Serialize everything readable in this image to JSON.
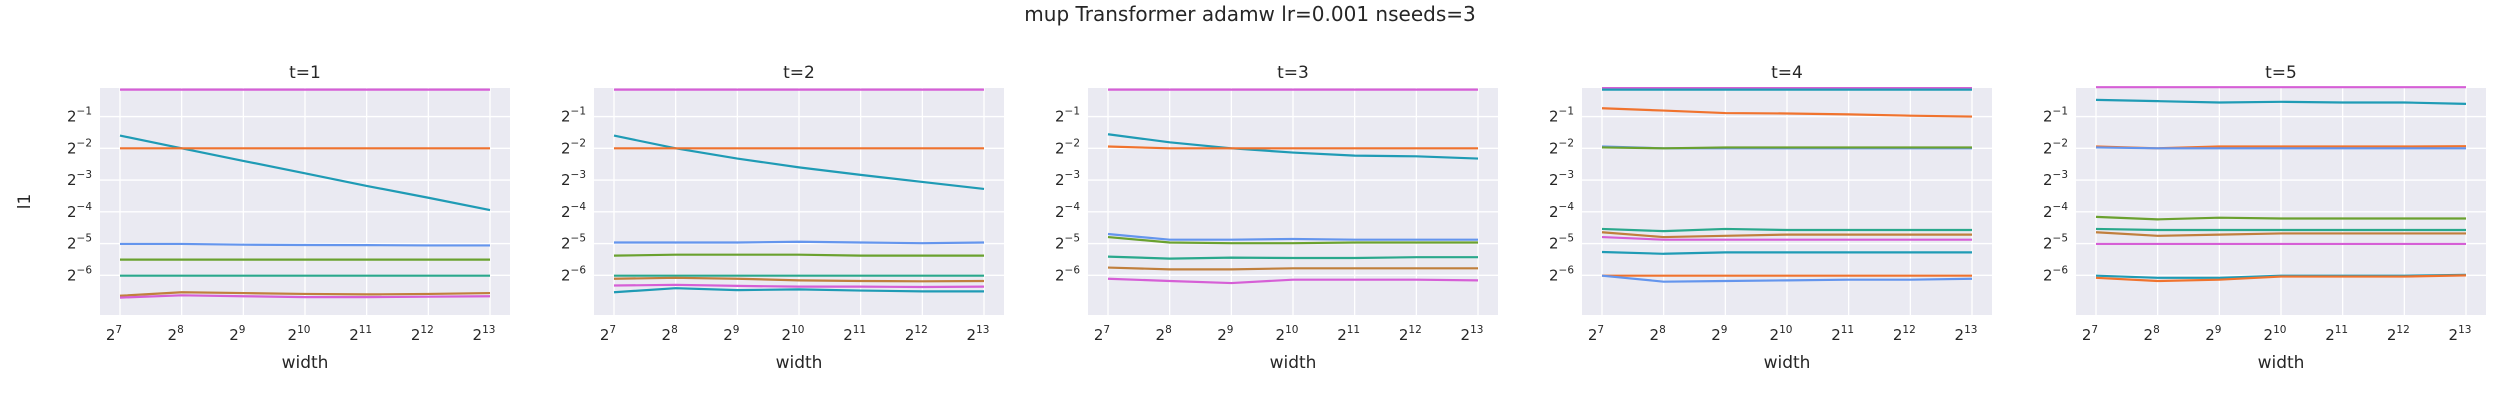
{
  "title": "mup Transformer adamw lr=0.001 nseeds=3",
  "colors": [
    "#d65fd6",
    "#1f9bb5",
    "#f0732e",
    "#6495ed",
    "#6aa12f",
    "#2aa88c",
    "#c07f3d"
  ],
  "chart_data": [
    {
      "type": "line",
      "title": "t=1",
      "xlabel": "width",
      "ylabel": "l1",
      "x_scale": "log2",
      "y_scale": "log2",
      "x": [
        128,
        256,
        512,
        1024,
        2048,
        4096,
        8192
      ],
      "x_ticks": [
        "2^7",
        "2^8",
        "2^9",
        "2^10",
        "2^11",
        "2^12",
        "2^13"
      ],
      "y_ticks": [
        "2^-1",
        "2^-2",
        "2^-3",
        "2^-4",
        "2^-5",
        "2^-6"
      ],
      "grid": true,
      "series": [
        {
          "values": [
            0.9,
            0.9,
            0.9,
            0.9,
            0.9,
            0.9,
            0.9
          ]
        },
        {
          "values": [
            0.33,
            0.25,
            0.19,
            0.145,
            0.11,
            0.085,
            0.065
          ]
        },
        {
          "values": [
            0.25,
            0.25,
            0.25,
            0.25,
            0.25,
            0.25,
            0.25
          ]
        },
        {
          "values": [
            0.031,
            0.031,
            0.0305,
            0.0303,
            0.0302,
            0.03,
            0.03
          ]
        },
        {
          "values": [
            0.022,
            0.022,
            0.022,
            0.022,
            0.022,
            0.022,
            0.022
          ]
        },
        {
          "values": [
            0.0155,
            0.0155,
            0.0155,
            0.0155,
            0.0155,
            0.0155,
            0.0155
          ]
        },
        {
          "values": [
            0.01,
            0.0108,
            0.0106,
            0.0104,
            0.0103,
            0.0104,
            0.0106
          ]
        },
        {
          "values": [
            0.0096,
            0.0101,
            0.0099,
            0.0097,
            0.0097,
            0.0098,
            0.0099
          ]
        }
      ]
    },
    {
      "type": "line",
      "title": "t=2",
      "xlabel": "width",
      "ylabel": "",
      "x_scale": "log2",
      "y_scale": "log2",
      "x": [
        128,
        256,
        512,
        1024,
        2048,
        4096,
        8192
      ],
      "x_ticks": [
        "2^7",
        "2^8",
        "2^9",
        "2^10",
        "2^11",
        "2^12",
        "2^13"
      ],
      "y_ticks": [
        "2^-1",
        "2^-2",
        "2^-3",
        "2^-4",
        "2^-5",
        "2^-6"
      ],
      "grid": true,
      "series": [
        {
          "values": [
            0.9,
            0.9,
            0.9,
            0.9,
            0.9,
            0.9,
            0.9
          ]
        },
        {
          "values": [
            0.33,
            0.25,
            0.2,
            0.165,
            0.14,
            0.12,
            0.103
          ]
        },
        {
          "values": [
            0.25,
            0.25,
            0.25,
            0.25,
            0.25,
            0.25,
            0.25
          ]
        },
        {
          "values": [
            0.032,
            0.032,
            0.032,
            0.0325,
            0.032,
            0.0315,
            0.032
          ]
        },
        {
          "values": [
            0.024,
            0.0245,
            0.0245,
            0.0245,
            0.024,
            0.024,
            0.024
          ]
        },
        {
          "values": [
            0.0155,
            0.0155,
            0.0155,
            0.0155,
            0.0155,
            0.0155,
            0.0155
          ]
        },
        {
          "values": [
            0.0145,
            0.0148,
            0.0145,
            0.014,
            0.0138,
            0.0137,
            0.0138
          ]
        },
        {
          "values": [
            0.0125,
            0.0127,
            0.0124,
            0.0122,
            0.0122,
            0.0121,
            0.0122
          ]
        },
        {
          "values": [
            0.0108,
            0.0118,
            0.0113,
            0.0115,
            0.0112,
            0.011,
            0.011
          ]
        }
      ]
    },
    {
      "type": "line",
      "title": "t=3",
      "xlabel": "width",
      "ylabel": "",
      "x_scale": "log2",
      "y_scale": "log2",
      "x": [
        128,
        256,
        512,
        1024,
        2048,
        4096,
        8192
      ],
      "x_ticks": [
        "2^7",
        "2^8",
        "2^9",
        "2^10",
        "2^11",
        "2^12",
        "2^13"
      ],
      "y_ticks": [
        "2^-1",
        "2^-2",
        "2^-3",
        "2^-4",
        "2^-5",
        "2^-6"
      ],
      "grid": true,
      "series": [
        {
          "values": [
            0.9,
            0.9,
            0.9,
            0.9,
            0.9,
            0.9,
            0.9
          ]
        },
        {
          "values": [
            0.34,
            0.285,
            0.25,
            0.228,
            0.213,
            0.21,
            0.2
          ]
        },
        {
          "values": [
            0.26,
            0.25,
            0.25,
            0.25,
            0.25,
            0.25,
            0.25
          ]
        },
        {
          "values": [
            0.0385,
            0.034,
            0.034,
            0.0345,
            0.034,
            0.034,
            0.034
          ]
        },
        {
          "values": [
            0.036,
            0.032,
            0.0315,
            0.0315,
            0.032,
            0.032,
            0.032
          ]
        },
        {
          "values": [
            0.0235,
            0.0225,
            0.023,
            0.0228,
            0.0228,
            0.0232,
            0.0232
          ]
        },
        {
          "values": [
            0.0185,
            0.0178,
            0.0178,
            0.0182,
            0.0182,
            0.0182,
            0.0182
          ]
        },
        {
          "values": [
            0.0145,
            0.0138,
            0.0132,
            0.0142,
            0.0142,
            0.0142,
            0.014
          ]
        }
      ]
    },
    {
      "type": "line",
      "title": "t=4",
      "xlabel": "width",
      "ylabel": "",
      "x_scale": "log2",
      "y_scale": "log2",
      "x": [
        128,
        256,
        512,
        1024,
        2048,
        4096,
        8192
      ],
      "x_ticks": [
        "2^7",
        "2^8",
        "2^9",
        "2^10",
        "2^11",
        "2^12",
        "2^13"
      ],
      "y_ticks": [
        "2^-1",
        "2^-2",
        "2^-3",
        "2^-4",
        "2^-5",
        "2^-6"
      ],
      "grid": true,
      "series": [
        {
          "values": [
            0.93,
            0.93,
            0.93,
            0.93,
            0.93,
            0.93,
            0.93
          ]
        },
        {
          "values": [
            0.9,
            0.9,
            0.9,
            0.9,
            0.9,
            0.9,
            0.9
          ]
        },
        {
          "values": [
            0.6,
            0.57,
            0.54,
            0.535,
            0.525,
            0.51,
            0.5
          ]
        },
        {
          "values": [
            0.26,
            0.25,
            0.25,
            0.25,
            0.25,
            0.25,
            0.25
          ]
        },
        {
          "values": [
            0.255,
            0.25,
            0.255,
            0.255,
            0.255,
            0.255,
            0.255
          ]
        },
        {
          "values": [
            0.043,
            0.041,
            0.043,
            0.042,
            0.042,
            0.042,
            0.042
          ]
        },
        {
          "values": [
            0.04,
            0.036,
            0.037,
            0.038,
            0.038,
            0.038,
            0.038
          ]
        },
        {
          "values": [
            0.036,
            0.034,
            0.034,
            0.034,
            0.034,
            0.034,
            0.034
          ]
        },
        {
          "values": [
            0.026,
            0.025,
            0.0258,
            0.0258,
            0.0258,
            0.0258,
            0.0258
          ]
        },
        {
          "values": [
            0.0155,
            0.0155,
            0.0155,
            0.0155,
            0.0155,
            0.0155,
            0.0155
          ]
        },
        {
          "values": [
            0.0155,
            0.0136,
            0.0138,
            0.014,
            0.0142,
            0.0142,
            0.0145
          ]
        }
      ]
    },
    {
      "type": "line",
      "title": "t=5",
      "xlabel": "width",
      "ylabel": "",
      "x_scale": "log2",
      "y_scale": "log2",
      "x": [
        128,
        256,
        512,
        1024,
        2048,
        4096,
        8192
      ],
      "x_ticks": [
        "2^7",
        "2^8",
        "2^9",
        "2^10",
        "2^11",
        "2^12",
        "2^13"
      ],
      "y_ticks": [
        "2^-1",
        "2^-2",
        "2^-3",
        "2^-4",
        "2^-5",
        "2^-6"
      ],
      "grid": true,
      "series": [
        {
          "values": [
            0.95,
            0.95,
            0.95,
            0.95,
            0.95,
            0.95,
            0.95
          ]
        },
        {
          "values": [
            0.72,
            0.7,
            0.68,
            0.69,
            0.68,
            0.68,
            0.66
          ]
        },
        {
          "values": [
            0.26,
            0.25,
            0.26,
            0.26,
            0.26,
            0.26,
            0.262
          ]
        },
        {
          "values": [
            0.255,
            0.25,
            0.25,
            0.25,
            0.25,
            0.25,
            0.25
          ]
        },
        {
          "values": [
            0.056,
            0.053,
            0.055,
            0.054,
            0.054,
            0.054,
            0.054
          ]
        },
        {
          "values": [
            0.043,
            0.042,
            0.042,
            0.042,
            0.042,
            0.042,
            0.042
          ]
        },
        {
          "values": [
            0.04,
            0.037,
            0.038,
            0.039,
            0.039,
            0.039,
            0.039
          ]
        },
        {
          "values": [
            0.031,
            0.031,
            0.031,
            0.031,
            0.031,
            0.031,
            0.031
          ]
        },
        {
          "values": [
            0.0155,
            0.0148,
            0.0148,
            0.0155,
            0.0155,
            0.0155,
            0.0158
          ]
        },
        {
          "values": [
            0.0148,
            0.0138,
            0.0142,
            0.0152,
            0.0152,
            0.0152,
            0.0156
          ]
        }
      ]
    }
  ]
}
